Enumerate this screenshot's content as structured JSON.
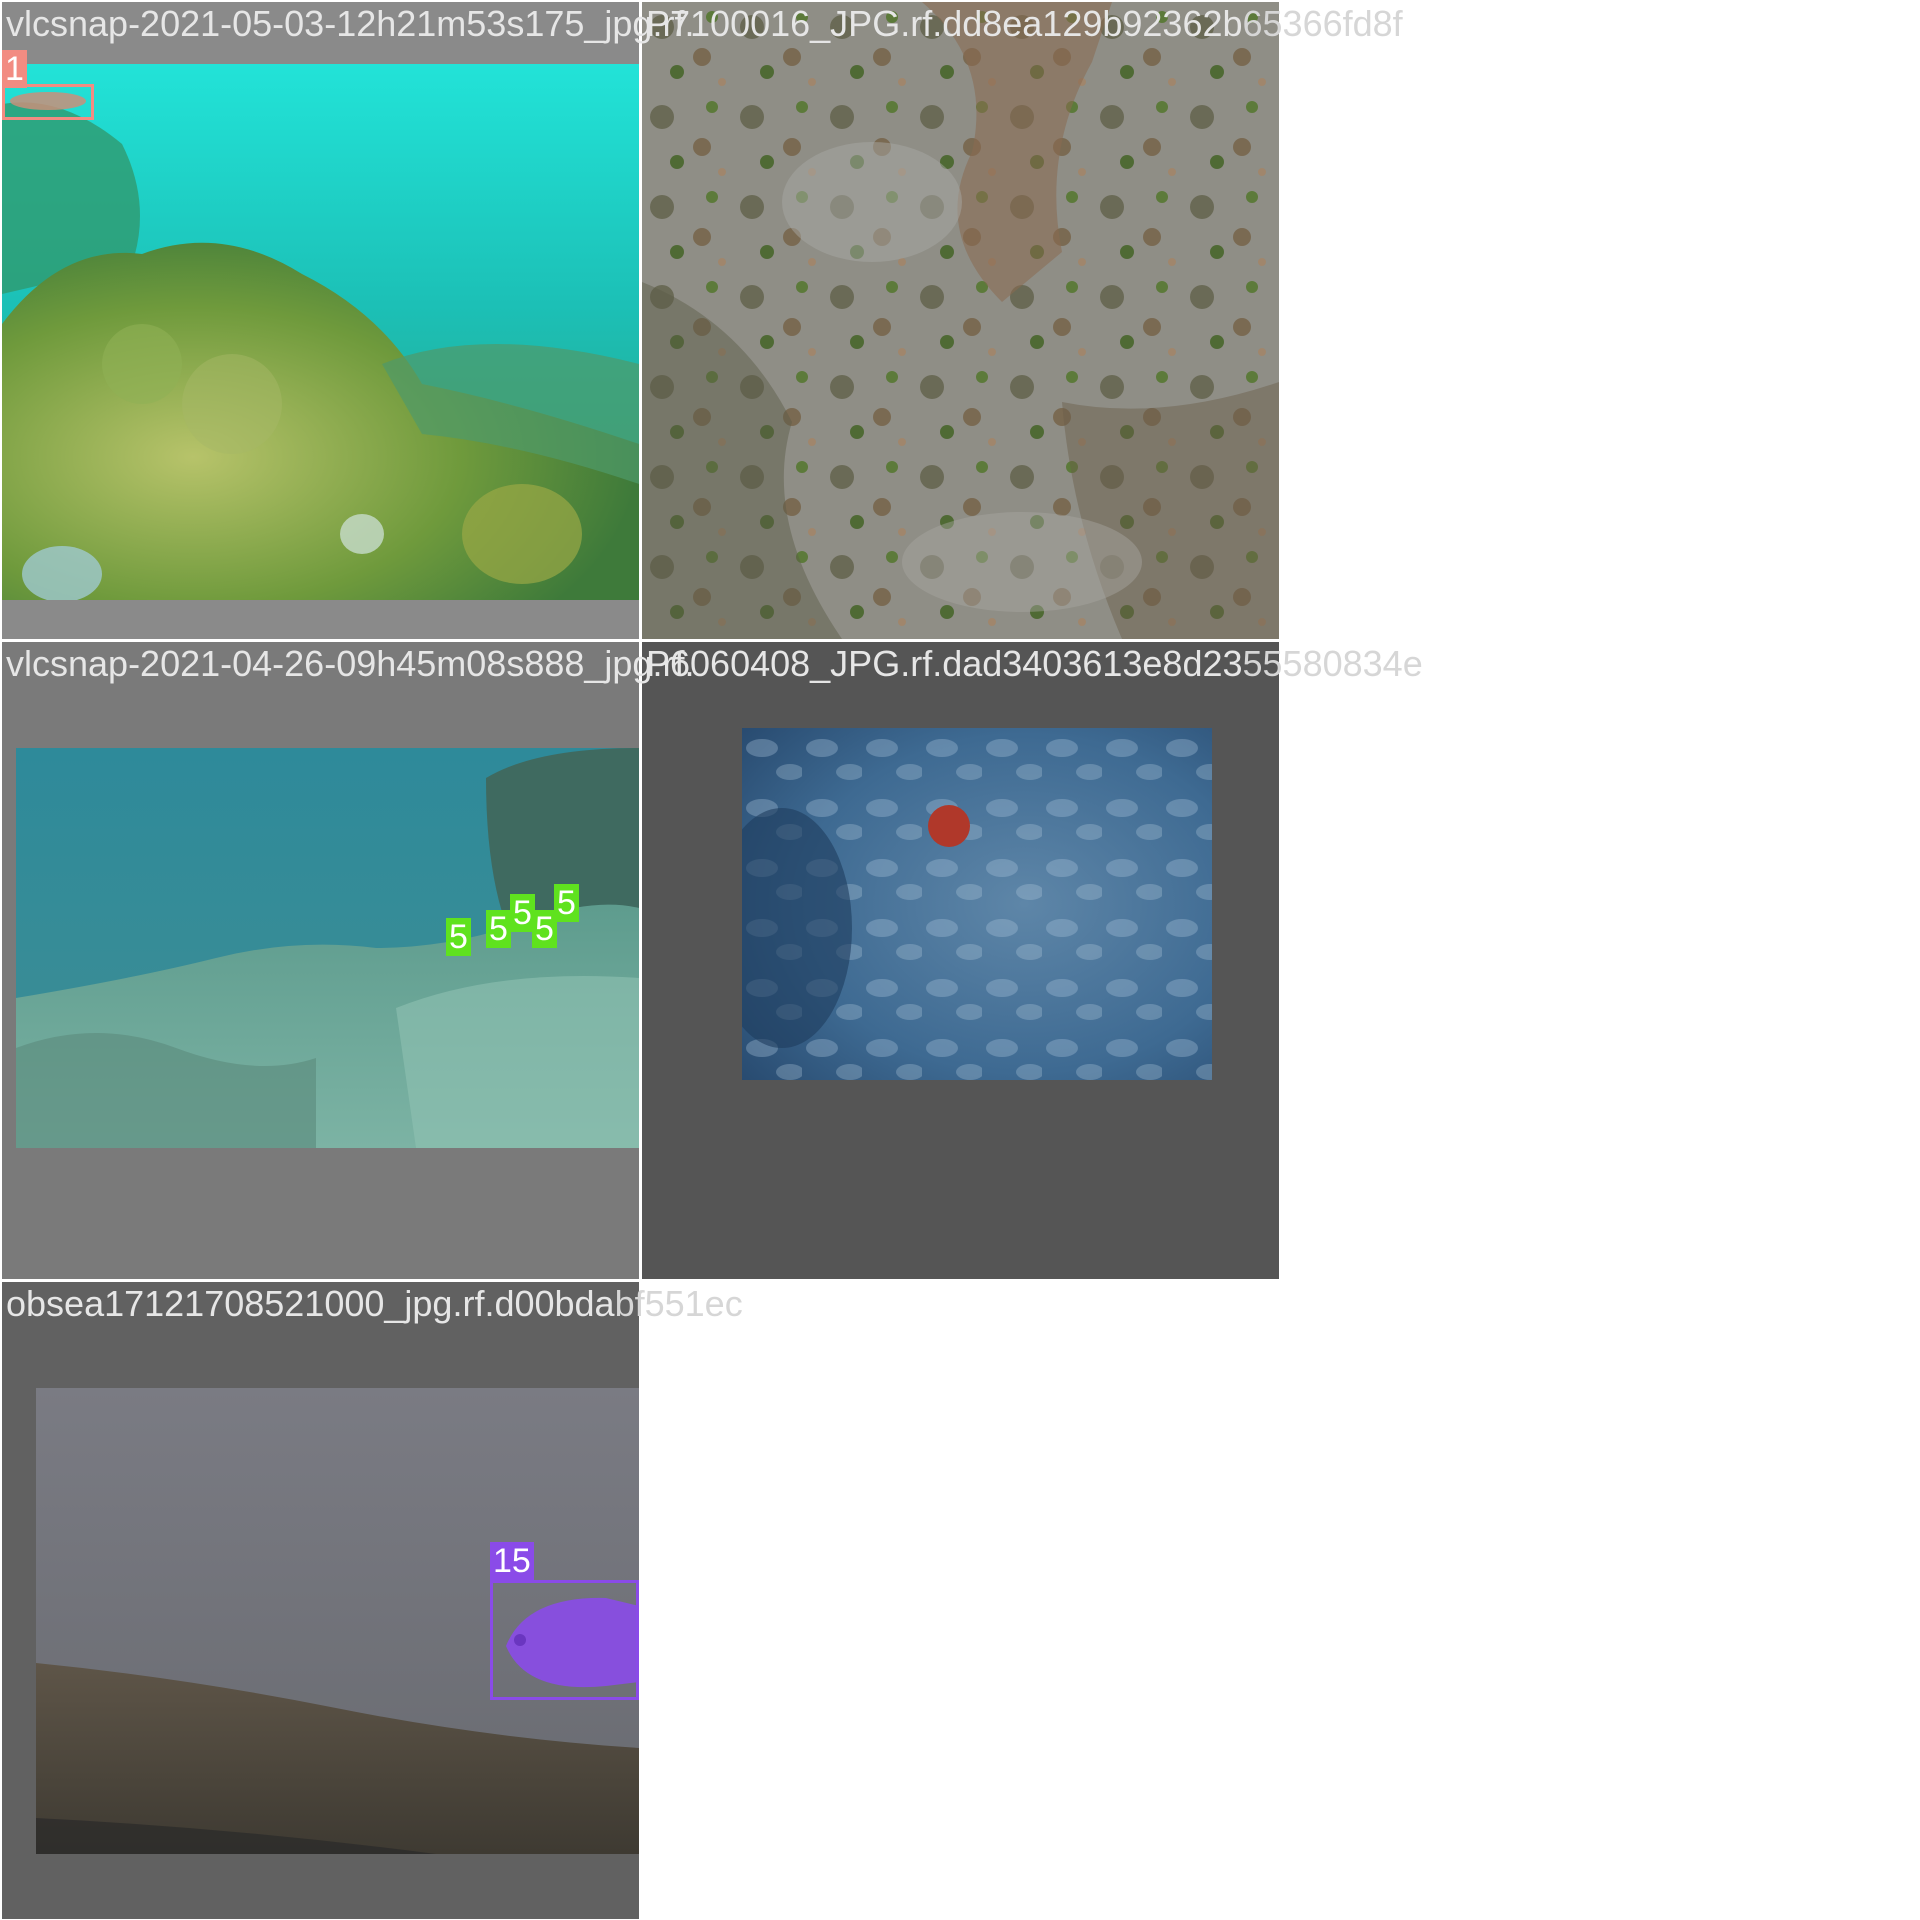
{
  "tiles": [
    {
      "caption": "vlcsnap-2021-05-03-12h21m53s175_jpg.rf.",
      "caption_overflow": "",
      "labels": [
        "1"
      ],
      "label_color": "#f28c82"
    },
    {
      "caption": "P7100016_JPG.rf.dd8ea129b92362b",
      "caption_overflow": "65366fd8f",
      "labels": []
    },
    {
      "caption": "vlcsnap-2021-04-26-09h45m08s888_jpg.rf.",
      "caption_overflow": "",
      "labels": [
        "5",
        "5",
        "5",
        "5",
        "5"
      ],
      "label_color": "#5fe21e"
    },
    {
      "caption": "P6060408_JPG.rf.dad3403613e8d23",
      "caption_overflow": "55580834e",
      "labels": []
    },
    {
      "caption": "obsea17121708521000_jpg.rf.d00bda",
      "caption_overflow": "bf551ec",
      "labels": [
        "15"
      ],
      "label_color": "#8a4be8"
    }
  ]
}
